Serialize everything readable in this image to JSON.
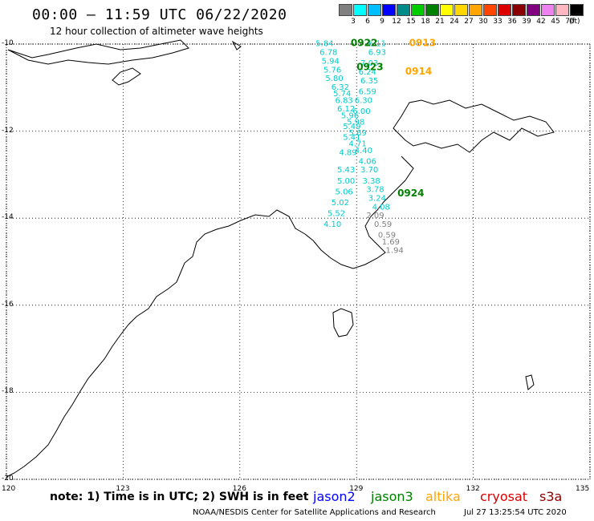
{
  "header": {
    "title": "00:00 – 11:59 UTC 06/22/2020",
    "subtitle": "12 hour collection of altimeter wave heights"
  },
  "colorbar": {
    "labels": [
      "3",
      "6",
      "9",
      "12",
      "15",
      "18",
      "21",
      "24",
      "27",
      "30",
      "33",
      "36",
      "39",
      "42",
      "45",
      "70"
    ],
    "unit": "(ft)",
    "colors": [
      "#808080",
      "#00ffff",
      "#00bfff",
      "#0000ff",
      "#008b8b",
      "#00cc00",
      "#008000",
      "#ffff00",
      "#ffd700",
      "#ffa500",
      "#ff4500",
      "#dd0000",
      "#8b0000",
      "#800080",
      "#ee82ee",
      "#ffb6c1",
      "#000000"
    ]
  },
  "axes": {
    "lon_labels": [
      "120",
      "123",
      "126",
      "129",
      "132",
      "135"
    ],
    "lat_labels": [
      "-10",
      "-12",
      "-14",
      "-16",
      "-18",
      "-20"
    ],
    "lon_range": [
      120,
      135
    ],
    "lat_range": [
      -20,
      -10
    ]
  },
  "tracks": [
    {
      "time": "0922",
      "color": "#008000",
      "lon": 128.85,
      "lat": -10.05
    },
    {
      "time": "0923",
      "color": "#008000",
      "lon": 129.0,
      "lat": -10.6
    },
    {
      "time": "0924",
      "color": "#008000",
      "lon": 130.05,
      "lat": -13.5
    },
    {
      "time": "0913",
      "color": "#ffa500",
      "lon": 130.35,
      "lat": -10.05
    },
    {
      "time": "0914",
      "color": "#ffa500",
      "lon": 130.25,
      "lat": -10.7
    }
  ],
  "values": [
    {
      "v": "5.84",
      "lon": 127.95,
      "lat": -10.05,
      "color": "#00cccc"
    },
    {
      "v": "6.11",
      "lon": 129.3,
      "lat": -10.05,
      "color": "#00cccc"
    },
    {
      "v": "6.78",
      "lon": 128.05,
      "lat": -10.25,
      "color": "#00cccc"
    },
    {
      "v": "6.93",
      "lon": 129.3,
      "lat": -10.25,
      "color": "#00cccc"
    },
    {
      "v": "5.94",
      "lon": 128.1,
      "lat": -10.45,
      "color": "#00cccc"
    },
    {
      "v": "7.03",
      "lon": 129.1,
      "lat": -10.5,
      "color": "#00cccc"
    },
    {
      "v": "5.76",
      "lon": 128.15,
      "lat": -10.65,
      "color": "#00cccc"
    },
    {
      "v": "6.24",
      "lon": 129.05,
      "lat": -10.7,
      "color": "#00cccc"
    },
    {
      "v": "5.80",
      "lon": 128.2,
      "lat": -10.85,
      "color": "#00cccc"
    },
    {
      "v": "6.35",
      "lon": 129.1,
      "lat": -10.9,
      "color": "#00cccc"
    },
    {
      "v": "6.32",
      "lon": 128.35,
      "lat": -11.05,
      "color": "#00cccc"
    },
    {
      "v": "6.59",
      "lon": 129.05,
      "lat": -11.15,
      "color": "#00cccc"
    },
    {
      "v": "5.74",
      "lon": 128.4,
      "lat": -11.2,
      "color": "#00cccc"
    },
    {
      "v": "6.30",
      "lon": 128.95,
      "lat": -11.35,
      "color": "#00cccc"
    },
    {
      "v": "6.83",
      "lon": 128.45,
      "lat": -11.35,
      "color": "#00cccc"
    },
    {
      "v": "6.12",
      "lon": 128.5,
      "lat": -11.55,
      "color": "#00cccc"
    },
    {
      "v": "6.00",
      "lon": 128.9,
      "lat": -11.6,
      "color": "#00cccc"
    },
    {
      "v": "5.96",
      "lon": 128.6,
      "lat": -11.7,
      "color": "#00cccc"
    },
    {
      "v": "5.98",
      "lon": 128.75,
      "lat": -11.85,
      "color": "#00cccc"
    },
    {
      "v": "5.49",
      "lon": 128.65,
      "lat": -11.95,
      "color": "#00cccc"
    },
    {
      "v": "5.69",
      "lon": 128.8,
      "lat": -12.1,
      "color": "#00cccc"
    },
    {
      "v": "5.41",
      "lon": 128.65,
      "lat": -12.2,
      "color": "#00cccc"
    },
    {
      "v": "4.71",
      "lon": 128.8,
      "lat": -12.35,
      "color": "#00cccc"
    },
    {
      "v": "4.40",
      "lon": 128.95,
      "lat": -12.5,
      "color": "#00cccc"
    },
    {
      "v": "4.89",
      "lon": 128.55,
      "lat": -12.55,
      "color": "#00cccc"
    },
    {
      "v": "4.06",
      "lon": 129.05,
      "lat": -12.75,
      "color": "#00cccc"
    },
    {
      "v": "5.43",
      "lon": 128.5,
      "lat": -12.95,
      "color": "#00cccc"
    },
    {
      "v": "3.70",
      "lon": 129.1,
      "lat": -12.95,
      "color": "#00cccc"
    },
    {
      "v": "5.00",
      "lon": 128.5,
      "lat": -13.2,
      "color": "#00cccc"
    },
    {
      "v": "3.38",
      "lon": 129.15,
      "lat": -13.2,
      "color": "#00cccc"
    },
    {
      "v": "5.06",
      "lon": 128.45,
      "lat": -13.45,
      "color": "#00cccc"
    },
    {
      "v": "3.78",
      "lon": 129.25,
      "lat": -13.4,
      "color": "#00cccc"
    },
    {
      "v": "3.24",
      "lon": 129.3,
      "lat": -13.6,
      "color": "#00cccc"
    },
    {
      "v": "5.02",
      "lon": 128.35,
      "lat": -13.7,
      "color": "#00cccc"
    },
    {
      "v": "4.08",
      "lon": 129.4,
      "lat": -13.8,
      "color": "#00cccc"
    },
    {
      "v": "5.52",
      "lon": 128.25,
      "lat": -13.95,
      "color": "#00cccc"
    },
    {
      "v": "2.09",
      "lon": 129.25,
      "lat": -14.0,
      "color": "#808080"
    },
    {
      "v": "4.10",
      "lon": 128.15,
      "lat": -14.2,
      "color": "#00cccc"
    },
    {
      "v": "0.59",
      "lon": 129.45,
      "lat": -14.2,
      "color": "#808080"
    },
    {
      "v": "0.59",
      "lon": 129.55,
      "lat": -14.45,
      "color": "#808080"
    },
    {
      "v": "1.69",
      "lon": 129.65,
      "lat": -14.6,
      "color": "#808080"
    },
    {
      "v": "1.94",
      "lon": 129.75,
      "lat": -14.8,
      "color": "#808080"
    }
  ],
  "footer": {
    "note": "note: 1) Time is in UTC; 2) SWH is in feet",
    "missions": [
      {
        "name": "jason2",
        "color": "#0000ff"
      },
      {
        "name": "jason3",
        "color": "#008000"
      },
      {
        "name": "altika",
        "color": "#ffa500"
      },
      {
        "name": "cryosat",
        "color": "#dd0000"
      },
      {
        "name": "s3a",
        "color": "#8b0000"
      }
    ],
    "credit": "NOAA/NESDIS Center for Satellite Applications and Research",
    "timestamp": "Jul 27 13:25:54 UTC 2020"
  }
}
